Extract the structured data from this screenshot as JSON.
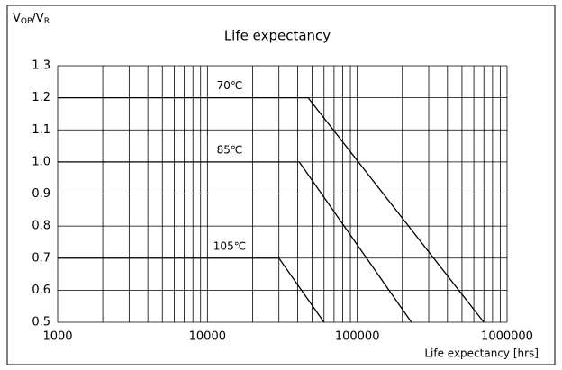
{
  "chart_data": {
    "type": "line",
    "title": "Life expectancy",
    "ylabel_parts": [
      "V",
      "OP",
      "/V",
      "R"
    ],
    "xlabel": "Life expectancy [hrs]",
    "log_x": true,
    "grid": true,
    "color": "#000000",
    "xlim": [
      1000,
      1000000
    ],
    "xticks": [
      1000,
      10000,
      100000,
      1000000
    ],
    "ylim": [
      0.5,
      1.3
    ],
    "yticks": [
      0.5,
      0.6,
      0.7,
      0.8,
      0.9,
      {
        "value": 1.0,
        "label": "1.0"
      },
      1.1,
      1.2,
      1.3
    ],
    "series": [
      {
        "name": "70℃",
        "color": "#000000",
        "x": [
          1000,
          47000,
          700000
        ],
        "values": [
          1.2,
          1.2,
          0.5
        ]
      },
      {
        "name": "85℃",
        "color": "#000000",
        "x": [
          1000,
          41000,
          230000
        ],
        "values": [
          1.0,
          1.0,
          0.5
        ]
      },
      {
        "name": "105℃",
        "color": "#000000",
        "x": [
          1000,
          30000,
          60000
        ],
        "values": [
          0.7,
          0.7,
          0.5
        ]
      }
    ]
  }
}
